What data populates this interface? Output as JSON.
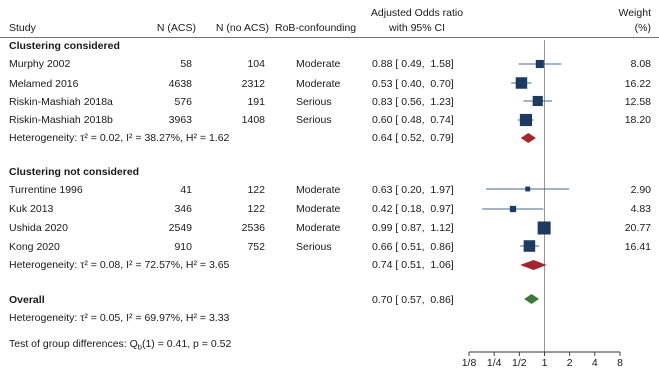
{
  "chart_data": {
    "type": "forest",
    "columns": {
      "study": "Study",
      "n_acs": "N (ACS)",
      "n_no_acs": "N (no ACS)",
      "rob": "RoB-confounding",
      "or_line1": "Adjusted Odds ratio",
      "or_line2": "with 95% CI",
      "weight_line1": "Weight",
      "weight_line2": "(%)"
    },
    "x_axis": {
      "scale": "log2",
      "range": [
        0.125,
        8
      ],
      "ticks": [
        {
          "value": 0.125,
          "label": "1/8"
        },
        {
          "value": 0.25,
          "label": "1/4"
        },
        {
          "value": 0.5,
          "label": "1/2"
        },
        {
          "value": 1,
          "label": "1"
        },
        {
          "value": 2,
          "label": "2"
        },
        {
          "value": 4,
          "label": "4"
        },
        {
          "value": 8,
          "label": "8"
        }
      ],
      "reference_line": 1
    },
    "groups": [
      {
        "name": "Clustering considered",
        "studies": [
          {
            "study": "Murphy 2002",
            "n_acs": "58",
            "n_no_acs": "104",
            "rob": "Moderate",
            "or": 0.88,
            "lo": 0.49,
            "hi": 1.58,
            "ci_text": "0.88 [ 0.49,  1.58]",
            "weight": 8.08,
            "weight_text": "8.08"
          },
          {
            "study": "Melamed 2016",
            "n_acs": "4638",
            "n_no_acs": "2312",
            "rob": "Moderate",
            "or": 0.53,
            "lo": 0.4,
            "hi": 0.7,
            "ci_text": "0.53 [ 0.40,  0.70]",
            "weight": 16.22,
            "weight_text": "16.22"
          },
          {
            "study": "Riskin-Mashiah 2018a",
            "n_acs": "576",
            "n_no_acs": "191",
            "rob": "Serious",
            "or": 0.83,
            "lo": 0.56,
            "hi": 1.23,
            "ci_text": "0.83 [ 0.56,  1.23]",
            "weight": 12.58,
            "weight_text": "12.58"
          },
          {
            "study": "Riskin-Mashiah 2018b",
            "n_acs": "3963",
            "n_no_acs": "1408",
            "rob": "Serious",
            "or": 0.6,
            "lo": 0.48,
            "hi": 0.74,
            "ci_text": "0.60 [ 0.48,  0.74]",
            "weight": 18.2,
            "weight_text": "18.20"
          }
        ],
        "heterogeneity": "Heterogeneity: τ² = 0.02, I² = 38.27%, H² = 1.62",
        "pooled": {
          "or": 0.64,
          "lo": 0.52,
          "hi": 0.79,
          "ci_text": "0.64 [ 0.52,  0.79]"
        }
      },
      {
        "name": "Clustering not considered",
        "studies": [
          {
            "study": "Turrentine 1996",
            "n_acs": "41",
            "n_no_acs": "122",
            "rob": "Moderate",
            "or": 0.63,
            "lo": 0.2,
            "hi": 1.97,
            "ci_text": "0.63 [ 0.20,  1.97]",
            "weight": 2.9,
            "weight_text": "2.90"
          },
          {
            "study": "Kuk 2013",
            "n_acs": "346",
            "n_no_acs": "122",
            "rob": "Moderate",
            "or": 0.42,
            "lo": 0.18,
            "hi": 0.97,
            "ci_text": "0.42 [ 0.18,  0.97]",
            "weight": 4.83,
            "weight_text": "4.83"
          },
          {
            "study": "Ushida 2020",
            "n_acs": "2549",
            "n_no_acs": "2536",
            "rob": "Moderate",
            "or": 0.99,
            "lo": 0.87,
            "hi": 1.12,
            "ci_text": "0.99 [ 0.87,  1.12]",
            "weight": 20.77,
            "weight_text": "20.77"
          },
          {
            "study": "Kong 2020",
            "n_acs": "910",
            "n_no_acs": "752",
            "rob": "Serious",
            "or": 0.66,
            "lo": 0.51,
            "hi": 0.86,
            "ci_text": "0.66 [ 0.51,  0.86]",
            "weight": 16.41,
            "weight_text": "16.41"
          }
        ],
        "heterogeneity": "Heterogeneity: τ² = 0.08, I² = 72.57%, H² = 3.65",
        "pooled": {
          "or": 0.74,
          "lo": 0.51,
          "hi": 1.06,
          "ci_text": "0.74 [ 0.51,  1.06]"
        }
      }
    ],
    "overall": {
      "label": "Overall",
      "or": 0.7,
      "lo": 0.57,
      "hi": 0.86,
      "ci_text": "0.70 [ 0.57,  0.86]",
      "heterogeneity": "Heterogeneity: τ² = 0.05, I² = 69.97%, H² = 3.33"
    },
    "group_test": {
      "prefix": "Test of group differences: Q",
      "subscript": "b",
      "suffix": "(1) = 0.41, p = 0.52"
    },
    "colors": {
      "study_marker": "#1f3a5f",
      "ci_line": "#4a6a8a",
      "subgroup_diamond": "#a3262e",
      "overall_diamond": "#3d7a3a",
      "reference_line": "#8a8a8a",
      "text": "#1a1a1a"
    }
  }
}
